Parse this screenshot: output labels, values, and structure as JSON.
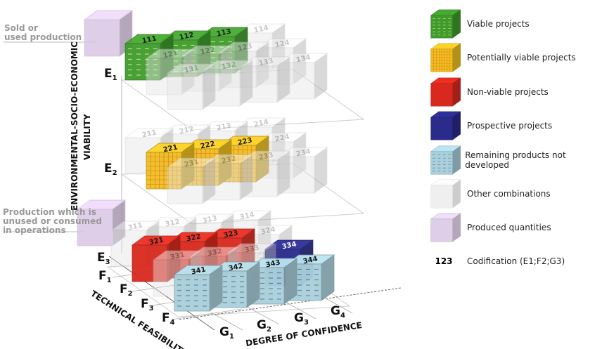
{
  "annotations": {
    "sold": [
      "Sold or",
      "used production"
    ],
    "unused": [
      "Production which is",
      "unused or consumed",
      "in operations"
    ]
  },
  "axes": {
    "e_title": [
      "ENVIRONMENTAL-SOCIO-ECONOMIC",
      "VIABILITY"
    ],
    "f_title": "TECHNICAL FEASIBILITY",
    "g_title": "DEGREE OF CONFIDENCE",
    "e_labels": [
      "E1",
      "E2",
      "E3"
    ],
    "f_labels": [
      "F1",
      "F2",
      "F3",
      "F4"
    ],
    "g_labels": [
      "G1",
      "G2",
      "G3",
      "G4"
    ]
  },
  "colors": {
    "viable": "#3f9b2c",
    "potential": "#f0c020",
    "nonviable": "#d9291e",
    "prospective": "#2b2b8c",
    "remaining": "#a9d0dc",
    "other": "#e6e6e6",
    "produced": "#d8c3e2"
  },
  "legend": [
    {
      "key": "viable",
      "label": "Viable projects"
    },
    {
      "key": "potential",
      "label": "Potentially viable projects"
    },
    {
      "key": "nonviable",
      "label": "Non-viable projects"
    },
    {
      "key": "prospective",
      "label": "Prospective projects"
    },
    {
      "key": "remaining",
      "label": "Remaining products not developed"
    },
    {
      "key": "other",
      "label": "Other combinations"
    },
    {
      "key": "produced",
      "label": "Produced quantities"
    },
    {
      "key": "code",
      "symbol": "123",
      "label": "Codification (E1;F2;G3)"
    }
  ],
  "cubes": [
    {
      "code": "111",
      "type": "viable"
    },
    {
      "code": "112",
      "type": "viable"
    },
    {
      "code": "113",
      "type": "viable"
    },
    {
      "code": "114",
      "type": "other"
    },
    {
      "code": "121",
      "type": "other"
    },
    {
      "code": "122",
      "type": "other"
    },
    {
      "code": "123",
      "type": "other"
    },
    {
      "code": "124",
      "type": "other"
    },
    {
      "code": "131",
      "type": "other"
    },
    {
      "code": "132",
      "type": "other"
    },
    {
      "code": "133",
      "type": "other"
    },
    {
      "code": "134",
      "type": "other"
    },
    {
      "code": "211",
      "type": "other"
    },
    {
      "code": "212",
      "type": "other"
    },
    {
      "code": "213",
      "type": "other"
    },
    {
      "code": "214",
      "type": "other"
    },
    {
      "code": "221",
      "type": "potential"
    },
    {
      "code": "222",
      "type": "potential"
    },
    {
      "code": "223",
      "type": "potential"
    },
    {
      "code": "224",
      "type": "other"
    },
    {
      "code": "231",
      "type": "other"
    },
    {
      "code": "232",
      "type": "other"
    },
    {
      "code": "233",
      "type": "other"
    },
    {
      "code": "234",
      "type": "other"
    },
    {
      "code": "311",
      "type": "other"
    },
    {
      "code": "312",
      "type": "other"
    },
    {
      "code": "313",
      "type": "other"
    },
    {
      "code": "314",
      "type": "other"
    },
    {
      "code": "321",
      "type": "nonviable"
    },
    {
      "code": "322",
      "type": "nonviable"
    },
    {
      "code": "323",
      "type": "nonviable"
    },
    {
      "code": "324",
      "type": "other"
    },
    {
      "code": "331",
      "type": "other"
    },
    {
      "code": "332",
      "type": "other"
    },
    {
      "code": "333",
      "type": "other"
    },
    {
      "code": "334",
      "type": "prospective"
    },
    {
      "code": "341",
      "type": "remaining"
    },
    {
      "code": "342",
      "type": "remaining"
    },
    {
      "code": "343",
      "type": "remaining"
    },
    {
      "code": "344",
      "type": "remaining"
    }
  ]
}
